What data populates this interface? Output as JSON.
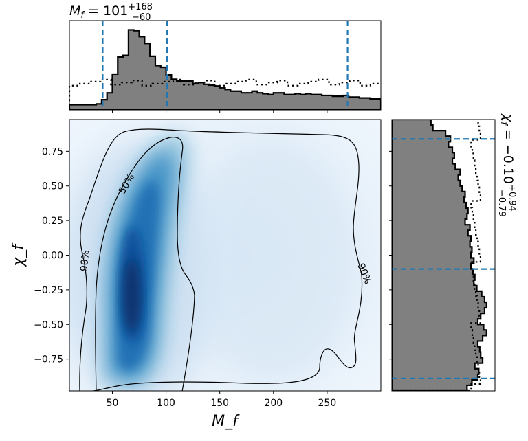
{
  "chart_data": {
    "type": "corner-plot",
    "panels": {
      "marginal_x": {
        "type": "histogram",
        "title_html": "M_f = 101^{+168}_{-60}",
        "title": {
          "var": "M",
          "sub": "f",
          "eq": " = 101",
          "sup": "+168",
          "lo": "−60"
        },
        "xlim": [
          10,
          300
        ],
        "quantiles": [
          41,
          101,
          269
        ],
        "posterior": {
          "bin_edges": [
            10,
            15,
            20,
            25,
            30,
            35,
            40,
            45,
            50,
            55,
            60,
            65,
            70,
            75,
            80,
            85,
            90,
            95,
            100,
            105,
            110,
            115,
            120,
            125,
            130,
            135,
            140,
            145,
            150,
            155,
            160,
            165,
            170,
            175,
            180,
            185,
            190,
            195,
            200,
            205,
            210,
            215,
            220,
            225,
            230,
            235,
            240,
            245,
            250,
            255,
            260,
            265,
            270,
            275,
            280,
            285,
            290,
            295,
            300
          ],
          "density": [
            0.06,
            0.06,
            0.06,
            0.06,
            0.06,
            0.07,
            0.12,
            0.2,
            0.42,
            0.62,
            0.64,
            0.94,
            0.93,
            0.86,
            0.78,
            0.63,
            0.52,
            0.5,
            0.41,
            0.36,
            0.34,
            0.34,
            0.34,
            0.31,
            0.32,
            0.3,
            0.29,
            0.28,
            0.26,
            0.24,
            0.22,
            0.22,
            0.2,
            0.2,
            0.22,
            0.2,
            0.19,
            0.18,
            0.2,
            0.2,
            0.18,
            0.18,
            0.19,
            0.18,
            0.19,
            0.18,
            0.18,
            0.17,
            0.17,
            0.16,
            0.16,
            0.17,
            0.15,
            0.15,
            0.14,
            0.14,
            0.13,
            0.13
          ]
        },
        "prior_density_level": 0.32
      },
      "joint": {
        "type": "density+contours",
        "xlabel": "M_f",
        "ylabel": "χ_f",
        "xlim": [
          10,
          300
        ],
        "ylim": [
          -0.98,
          0.98
        ],
        "xticks": [
          50,
          100,
          150,
          200,
          250
        ],
        "yticks": [
          0.75,
          0.5,
          0.25,
          0.0,
          -0.25,
          -0.5,
          -0.75
        ],
        "xtick_labels": [
          "50",
          "100",
          "150",
          "200",
          "250"
        ],
        "ytick_labels": [
          "0.75",
          "0.50",
          "0.25",
          "0.00",
          "−0.25",
          "−0.50",
          "−0.75"
        ],
        "contour_labels": [
          "50%",
          "90%",
          "90%"
        ],
        "colormap": "Blues",
        "peak": {
          "x": 72,
          "y": -0.28
        }
      },
      "marginal_y": {
        "type": "histogram",
        "orientation": "horizontal",
        "title": {
          "var": "χ",
          "sub": "f",
          "eq": " = −0.10",
          "sup": "+0.94",
          "lo": "−0.79"
        },
        "ylim": [
          -0.98,
          0.98
        ],
        "quantiles": [
          -0.89,
          -0.1,
          0.84
        ],
        "posterior": {
          "bin_edges": [
            -0.98,
            -0.94,
            -0.9,
            -0.86,
            -0.82,
            -0.78,
            -0.74,
            -0.7,
            -0.66,
            -0.62,
            -0.58,
            -0.54,
            -0.5,
            -0.46,
            -0.42,
            -0.38,
            -0.34,
            -0.3,
            -0.26,
            -0.22,
            -0.18,
            -0.14,
            -0.1,
            -0.06,
            -0.02,
            0.02,
            0.06,
            0.1,
            0.14,
            0.18,
            0.22,
            0.26,
            0.3,
            0.34,
            0.38,
            0.42,
            0.46,
            0.5,
            0.54,
            0.58,
            0.62,
            0.66,
            0.7,
            0.74,
            0.78,
            0.82,
            0.86,
            0.9,
            0.94,
            0.98
          ],
          "density": [
            0.77,
            0.82,
            0.88,
            0.89,
            0.85,
            0.93,
            0.91,
            0.9,
            0.88,
            0.93,
            0.97,
            0.94,
            0.88,
            0.91,
            0.95,
            0.97,
            0.95,
            0.92,
            0.87,
            0.84,
            0.85,
            0.83,
            0.81,
            0.84,
            0.81,
            0.82,
            0.8,
            0.81,
            0.78,
            0.8,
            0.75,
            0.77,
            0.78,
            0.76,
            0.74,
            0.75,
            0.72,
            0.7,
            0.68,
            0.7,
            0.65,
            0.62,
            0.64,
            0.62,
            0.58,
            0.6,
            0.55,
            0.42,
            0.4
          ]
        },
        "prior_density_level": 0.86
      }
    },
    "colors": {
      "histogram_fill": "#808080",
      "quantile_line": "#1f77b4",
      "contour": "#000000",
      "density_peak": "#08306b"
    }
  }
}
